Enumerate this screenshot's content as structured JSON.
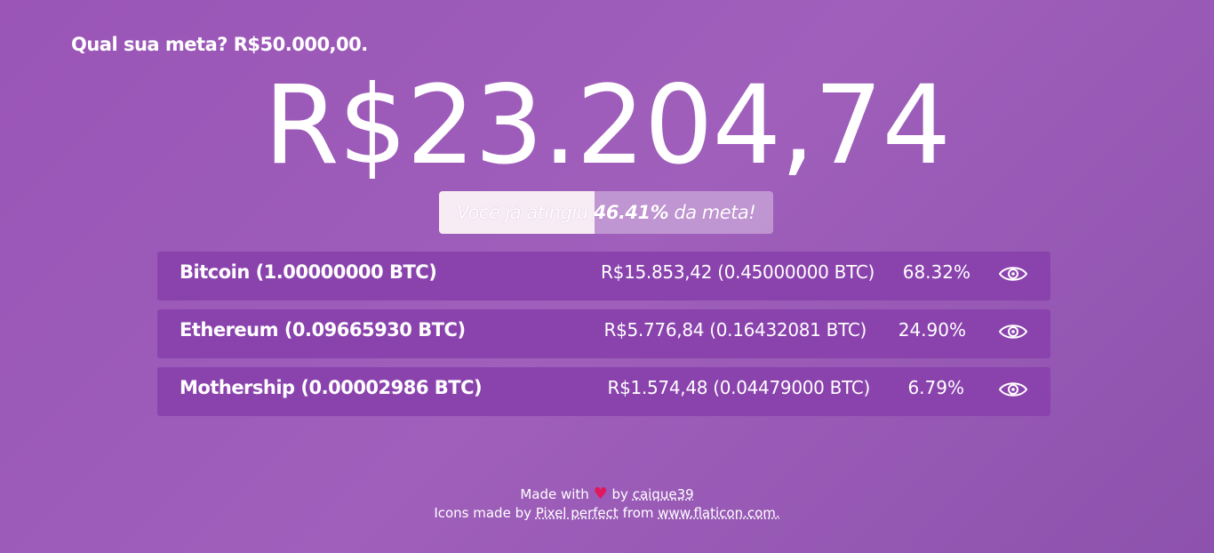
{
  "goal": {
    "question": "Qual sua meta? R$50.000,00."
  },
  "balance": {
    "total": "R$23.204,74"
  },
  "progress": {
    "prefix": "Você já atingiu ",
    "percent": "46.41%",
    "suffix": " da meta!",
    "fraction": 0.4641
  },
  "coins": [
    {
      "name": "Bitcoin (1.00000000 BTC)",
      "value": "R$15.853,42 (0.45000000 BTC)",
      "percent": "68.32%",
      "icon": "eye-icon"
    },
    {
      "name": "Ethereum (0.09665930 BTC)",
      "value": "R$5.776,84 (0.16432081 BTC)",
      "percent": "24.90%",
      "icon": "eye-icon"
    },
    {
      "name": "Mothership (0.00002986 BTC)",
      "value": "R$1.574,48 (0.04479000 BTC)",
      "percent": "6.79%",
      "icon": "eye-icon"
    }
  ],
  "footer": {
    "made_with": "Made with",
    "heart": "♥",
    "by": "by",
    "author": "caique39",
    "icons_made_by": "Icons made by",
    "icon_author": "Pixel perfect",
    "from": "from",
    "site": "www.flaticon.com."
  },
  "colors": {
    "background": "#9b58b6",
    "row": "#8a43ad",
    "progress_fill": "#f8ecf4",
    "heart": "#e0185f"
  }
}
